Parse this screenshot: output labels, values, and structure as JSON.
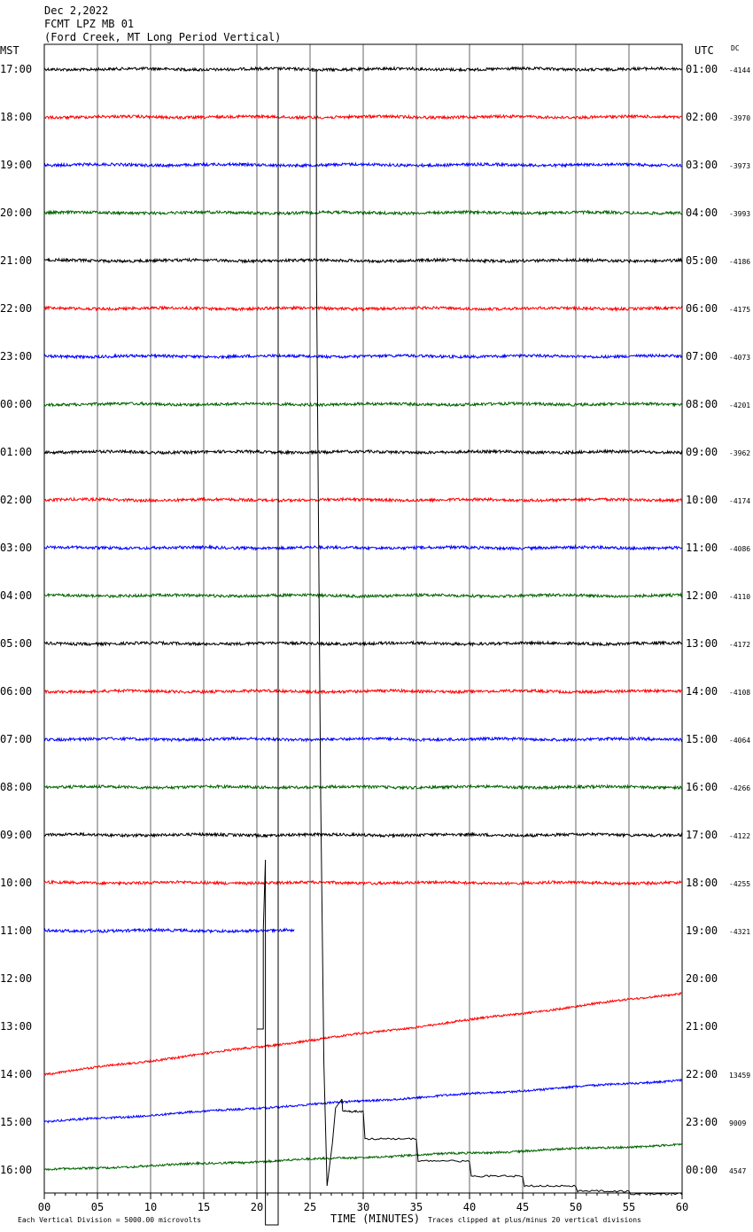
{
  "header": {
    "date": "Dec 2,2022",
    "station": "FCMT LPZ MB 01",
    "location": "(Ford Creek, MT Long Period Vertical)",
    "left_zone": "MST",
    "right_zone": "UTC",
    "dc_label": "DC"
  },
  "footer": {
    "xlabel": "TIME (MINUTES)",
    "scale_note": "Each Vertical Division = 5000.00 microvolts",
    "clip_note": "Traces clipped at plus/minus 20 vertical divisions"
  },
  "colors": {
    "cycle": [
      "#000000",
      "#ff0000",
      "#0000ff",
      "#006400"
    ]
  },
  "chart_data": {
    "type": "line",
    "title": "FCMT LPZ MB 01",
    "xlabel": "TIME (MINUTES)",
    "xlim": [
      0,
      60
    ],
    "x_ticks": [
      "00",
      "05",
      "10",
      "15",
      "20",
      "25",
      "30",
      "35",
      "40",
      "45",
      "50",
      "55",
      "60"
    ],
    "grid": true,
    "rows": [
      {
        "mst": "17:00",
        "utc": "01:00",
        "dc": "-4144"
      },
      {
        "mst": "18:00",
        "utc": "02:00",
        "dc": "-3970"
      },
      {
        "mst": "19:00",
        "utc": "03:00",
        "dc": "-3973"
      },
      {
        "mst": "20:00",
        "utc": "04:00",
        "dc": "-3993"
      },
      {
        "mst": "21:00",
        "utc": "05:00",
        "dc": "-4186"
      },
      {
        "mst": "22:00",
        "utc": "06:00",
        "dc": "-4175"
      },
      {
        "mst": "23:00",
        "utc": "07:00",
        "dc": "-4073"
      },
      {
        "mst": "00:00",
        "utc": "08:00",
        "dc": "-4201"
      },
      {
        "mst": "01:00",
        "utc": "09:00",
        "dc": "-3962"
      },
      {
        "mst": "02:00",
        "utc": "10:00",
        "dc": "-4174"
      },
      {
        "mst": "03:00",
        "utc": "11:00",
        "dc": "-4086"
      },
      {
        "mst": "04:00",
        "utc": "12:00",
        "dc": "-4110"
      },
      {
        "mst": "05:00",
        "utc": "13:00",
        "dc": "-4172"
      },
      {
        "mst": "06:00",
        "utc": "14:00",
        "dc": "-4108"
      },
      {
        "mst": "07:00",
        "utc": "15:00",
        "dc": "-4064"
      },
      {
        "mst": "08:00",
        "utc": "16:00",
        "dc": "-4266"
      },
      {
        "mst": "09:00",
        "utc": "17:00",
        "dc": "-4122"
      },
      {
        "mst": "10:00",
        "utc": "18:00",
        "dc": "-4255"
      },
      {
        "mst": "11:00",
        "utc": "19:00",
        "dc": "-4321"
      },
      {
        "mst": "12:00",
        "utc": "20:00",
        "dc": ""
      },
      {
        "mst": "13:00",
        "utc": "21:00",
        "dc": ""
      },
      {
        "mst": "14:00",
        "utc": "22:00",
        "dc": "13459"
      },
      {
        "mst": "15:00",
        "utc": "23:00",
        "dc": "9009"
      },
      {
        "mst": "16:00",
        "utc": "00:00",
        "dc": "4547"
      }
    ],
    "traces": [
      {
        "row": 0,
        "x_end": 60,
        "amp": 1.6
      },
      {
        "row": 1,
        "x_end": 60,
        "amp": 1.6
      },
      {
        "row": 2,
        "x_end": 60,
        "amp": 1.6
      },
      {
        "row": 3,
        "x_end": 60,
        "amp": 1.6
      },
      {
        "row": 4,
        "x_end": 60,
        "amp": 1.6
      },
      {
        "row": 5,
        "x_end": 60,
        "amp": 1.6
      },
      {
        "row": 6,
        "x_end": 60,
        "amp": 1.6
      },
      {
        "row": 7,
        "x_end": 60,
        "amp": 1.6
      },
      {
        "row": 8,
        "x_end": 60,
        "amp": 1.6
      },
      {
        "row": 9,
        "x_end": 60,
        "amp": 1.6
      },
      {
        "row": 10,
        "x_end": 60,
        "amp": 1.6
      },
      {
        "row": 11,
        "x_end": 60,
        "amp": 1.6
      },
      {
        "row": 12,
        "x_end": 60,
        "amp": 1.6
      },
      {
        "row": 13,
        "x_end": 60,
        "amp": 1.6
      },
      {
        "row": 14,
        "x_end": 60,
        "amp": 1.6
      },
      {
        "row": 15,
        "x_end": 60,
        "amp": 1.6
      },
      {
        "row": 16,
        "x_end": 60,
        "amp": 1.6
      },
      {
        "row": 17,
        "x_end": 60,
        "amp": 1.6
      },
      {
        "row": 18,
        "x_end": 23.5,
        "amp": 1.6
      },
      {
        "row": 21,
        "x_end": 60,
        "amp": 1.2,
        "drift": 1.7
      },
      {
        "row": 22,
        "x_end": 60,
        "amp": 1.2,
        "drift": 0.88
      },
      {
        "row": 23,
        "x_end": 60,
        "amp": 1.2,
        "drift": 0.53
      }
    ]
  }
}
